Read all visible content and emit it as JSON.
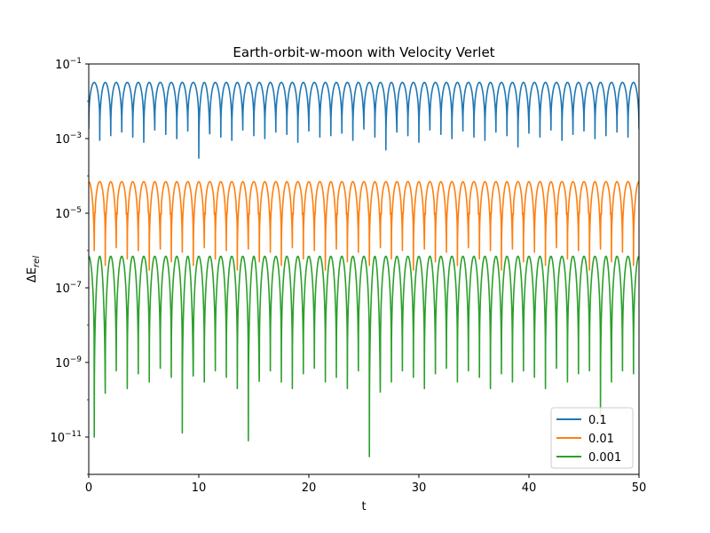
{
  "chart_data": {
    "type": "line",
    "title": "Earth-orbit-w-moon with Velocity Verlet",
    "xlabel": "t",
    "ylabel": "ΔE",
    "ylabel_subscript": "rel",
    "xlim": [
      0,
      50
    ],
    "ylim": [
      1e-12,
      0.1
    ],
    "yscale": "log",
    "xticks": [
      0,
      10,
      20,
      30,
      40,
      50
    ],
    "xtick_labels": [
      "0",
      "10",
      "20",
      "30",
      "40",
      "50"
    ],
    "yticks": [
      1e-11,
      1e-09,
      1e-07,
      1e-05,
      0.001,
      0.1
    ],
    "ytick_labels": [
      {
        "base": "10",
        "exp": "−11"
      },
      {
        "base": "10",
        "exp": "−9"
      },
      {
        "base": "10",
        "exp": "−7"
      },
      {
        "base": "10",
        "exp": "−5"
      },
      {
        "base": "10",
        "exp": "−3"
      },
      {
        "base": "10",
        "exp": "−1"
      }
    ],
    "grid": false,
    "legend_position": "lower-right",
    "period": 1.0,
    "samples_per_period": 80,
    "series": [
      {
        "name": "0.1",
        "color": "#1f77b4",
        "peak": 0.032,
        "dips": [
          0.0018,
          0.0009,
          0.0012,
          0.0015,
          0.0011,
          0.0008,
          0.0017,
          0.0013,
          0.001,
          0.0016,
          0.0003,
          0.0014,
          0.0011,
          0.0009,
          0.0017,
          0.0012,
          0.001,
          0.0015,
          0.0013,
          0.0008,
          0.0016,
          0.0011,
          0.0012,
          0.0014,
          0.0009,
          0.0018,
          0.0011,
          0.0005,
          0.0015,
          0.0012,
          0.0008,
          0.0017,
          0.0013,
          0.001,
          0.0016,
          0.0011,
          0.0009,
          0.0015,
          0.0012,
          0.0006,
          0.0014,
          0.0011,
          0.0017,
          0.0009,
          0.0013,
          0.0016,
          0.001,
          0.0012,
          0.0015,
          0.0011
        ],
        "offset": 0.0
      },
      {
        "name": "0.01",
        "color": "#ff7f0e",
        "peak": 7e-05,
        "dips": [
          1e-06,
          4e-07,
          1.2e-06,
          6e-07,
          1e-06,
          3e-07,
          1.1e-06,
          5e-07,
          9e-07,
          4e-07,
          1.2e-06,
          6e-07,
          1e-06,
          3e-07,
          1.1e-06,
          5e-07,
          9e-07,
          4e-07,
          1.2e-06,
          6e-07,
          1e-06,
          3e-07,
          1.1e-06,
          5e-07,
          9e-07,
          4e-07,
          1.2e-06,
          6e-07,
          1e-06,
          3e-07,
          1.1e-06,
          5e-07,
          9e-07,
          4e-07,
          1.2e-06,
          6e-07,
          1e-06,
          3e-07,
          1.1e-06,
          5e-07,
          9e-07,
          4e-07,
          1.2e-06,
          6e-07,
          1e-06,
          3e-07,
          1.1e-06,
          5e-07,
          9e-07,
          4e-07
        ],
        "secondary_dips": [
          1e-05,
          1.2e-05,
          9e-06,
          1.1e-05,
          1e-05,
          1.3e-05,
          9e-06,
          1.1e-05,
          1.2e-05,
          1e-05,
          9e-06,
          1.1e-05,
          1e-05,
          1.3e-05,
          9e-06,
          1.1e-05,
          1.2e-05,
          1e-05,
          9e-06,
          1.1e-05,
          1e-05,
          1.3e-05,
          9e-06,
          1.1e-05,
          1.2e-05,
          1e-05,
          9e-06,
          1.1e-05,
          1e-05,
          1.3e-05,
          9e-06,
          1.1e-05,
          1.2e-05,
          1e-05,
          9e-06,
          1.1e-05,
          1e-05,
          1.3e-05,
          9e-06,
          1.1e-05,
          1.2e-05,
          1e-05,
          9e-06,
          1.1e-05,
          1e-05,
          1.3e-05,
          9e-06,
          1.1e-05,
          1.2e-05,
          1e-05
        ],
        "offset": 0.5
      },
      {
        "name": "0.001",
        "color": "#2ca02c",
        "peak": 7e-07,
        "dips": [
          1e-11,
          1.5e-10,
          6e-10,
          2e-10,
          5e-10,
          3e-10,
          7e-10,
          4e-10,
          1.3e-11,
          5e-10,
          3e-10,
          6e-10,
          4e-10,
          2e-10,
          8e-12,
          4e-10,
          6e-10,
          3e-10,
          2e-10,
          5e-10,
          7e-10,
          3e-10,
          4e-10,
          2e-10,
          6e-10,
          3e-12,
          5e-10,
          3e-10,
          6e-10,
          4e-10,
          2e-10,
          5e-10,
          7e-10,
          3e-10,
          6e-10,
          4e-10,
          2e-10,
          5e-10,
          3e-10,
          6e-10,
          4e-10,
          2e-10,
          7e-10,
          3e-10,
          5e-10,
          6e-10,
          4e-11,
          3e-10,
          6e-10,
          5e-10
        ],
        "secondary_dips": [
          1.2e-07,
          1.5e-07,
          1e-07,
          1.3e-07,
          1.1e-07,
          1.4e-07,
          1e-07,
          1.2e-07,
          1.5e-07,
          1.1e-07,
          1.3e-07,
          1e-07,
          1.4e-07,
          1.2e-07,
          1.1e-07,
          1.5e-07,
          1e-07,
          1.3e-07,
          1.2e-07,
          1.4e-07,
          1.1e-07,
          1e-07,
          1.5e-07,
          1.2e-07,
          1.3e-07,
          1.1e-07,
          1.4e-07,
          1e-07,
          1.2e-07,
          1.5e-07,
          1.1e-07,
          1.3e-07,
          1e-07,
          1.4e-07,
          1.2e-07,
          1.1e-07,
          1.5e-07,
          1e-07,
          1.3e-07,
          1.2e-07,
          1.4e-07,
          1.1e-07,
          1e-07,
          1.5e-07,
          1.2e-07,
          1.3e-07,
          1.1e-07,
          1.4e-07,
          1e-07,
          1.2e-07
        ],
        "offset": 0.5
      }
    ]
  }
}
